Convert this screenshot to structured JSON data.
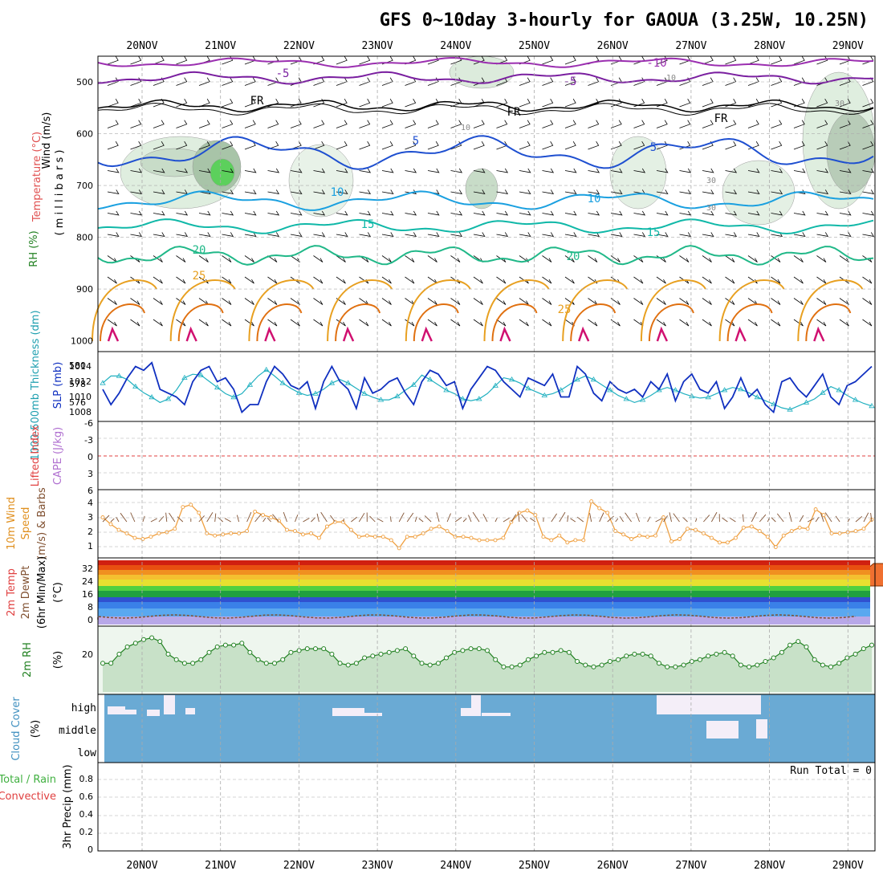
{
  "title": "GFS 0~10day 3-hourly for GAOUA (3.25W, 10.25N)",
  "days": [
    "20NOV",
    "21NOV",
    "22NOV",
    "23NOV",
    "24NOV",
    "25NOV",
    "26NOV",
    "27NOV",
    "28NOV",
    "29NOV"
  ],
  "panels": {
    "upper": {
      "labels": {
        "rh": "RH (%)",
        "temperature": "Temperature (°C)",
        "wind": "Wind (m/s)",
        "millibars": "( m i l l i b a r s )"
      },
      "pressure_ticks": [
        "500",
        "600",
        "700",
        "800",
        "900",
        "1000"
      ],
      "contour_labels": [
        "-10",
        "-5",
        "-5",
        "FR",
        "FR",
        "FR",
        "5",
        "5",
        "10",
        "10",
        "15",
        "15",
        "20",
        "20",
        "25",
        "25",
        "10",
        "30",
        "30",
        "30",
        "10"
      ],
      "colors": {
        "t_m10": "#9b2fb0",
        "t_m5": "#7a1fa0",
        "t_fr": "#000000",
        "t_5": "#1e4fd0",
        "t_10": "#1aa0e0",
        "t_15": "#10b8a8",
        "t_20": "#20b888",
        "t_25": "#e8a020",
        "t_30": "#e07010",
        "t_35": "#d01070",
        "rh": "#8ab88a"
      }
    },
    "thickness": {
      "labels": {
        "thickness": "1000-500mb Thickness (dm)",
        "slp": "SLP (mb)"
      },
      "thickness_ticks": [
        "580",
        "578",
        "576"
      ],
      "slp_ticks": [
        "1014",
        "1012",
        "1010",
        "1008"
      ],
      "colors": {
        "thickness": "#20b0c0",
        "slp": "#1030c0"
      }
    },
    "instability": {
      "labels": {
        "lifted": "Lifted Index",
        "cape": "CAPE (J/kg)"
      },
      "li_ticks": [
        "-6",
        "-3",
        "0",
        "3",
        "6"
      ],
      "colors": {
        "lifted": "#e04040",
        "cape": "#b070d0"
      }
    },
    "wind10m": {
      "labels": {
        "title": "10m Wind",
        "speed": "Speed",
        "barbs": "(m/s) & Barbs"
      },
      "ticks": [
        "4",
        "3",
        "2",
        "1"
      ],
      "colors": {
        "speed": "#f0a040",
        "barbs": "#805030"
      }
    },
    "temp2m": {
      "labels": {
        "temp": "2m Temp",
        "dewpt": "2m DewPt",
        "minmax": "(6hr Min/Max)",
        "unit": "(°C)"
      },
      "ticks": [
        "32",
        "24",
        "16",
        "8",
        "0"
      ]
    },
    "rh2m": {
      "labels": {
        "title": "2m RH",
        "unit": "(%)"
      },
      "ticks": [
        "20"
      ],
      "colors": {
        "line": "#208020",
        "fill": "#b8d8b8"
      }
    },
    "cloud": {
      "labels": {
        "title": "Cloud Cover",
        "unit": "(%)"
      },
      "levels": [
        "high",
        "middle",
        "low"
      ],
      "colors": {
        "bg": "#6aaad4",
        "cloud": "#f4eef8"
      }
    },
    "precip": {
      "labels": {
        "total": "Total / Rain",
        "convective": "Convective",
        "axis": "3hr Precip (mm)",
        "run_total": "Run Total = 0"
      },
      "ticks": [
        "0.8",
        "0.6",
        "0.4",
        "0.2",
        "0"
      ],
      "colors": {
        "total": "#40b040",
        "convective": "#e04040"
      }
    }
  },
  "chart_data": [
    {
      "type": "line",
      "title": "1000-500mb Thickness (dm) / SLP (mb)",
      "x_start": "19NOV 12Z",
      "x_step_hours": 3,
      "series": [
        {
          "name": "1000-500mb Thickness (dm)",
          "axis": "left",
          "values": [
            578.8,
            579.6,
            579.6,
            579.2,
            578.4,
            577.7,
            577.2,
            576.6,
            577.0,
            578.0,
            579.4,
            579.8,
            579.7,
            579.0,
            578.3,
            577.6,
            577.2,
            577.6,
            578.6,
            579.6,
            580.3,
            579.6,
            578.8,
            578.2,
            577.7,
            577.4,
            577.6,
            578.1,
            578.8,
            579.2,
            578.8,
            578.2,
            577.6,
            577.2,
            576.9,
            576.9,
            577.3,
            578.0,
            578.6,
            579.7,
            579.2,
            578.6,
            578.0,
            577.6,
            577.0,
            576.8,
            577.0,
            577.6,
            578.5,
            579.4,
            579.2,
            578.8,
            578.2,
            577.8,
            577.4,
            577.6,
            578.0,
            578.6,
            579.2,
            579.6,
            579.2,
            578.6,
            578.0,
            577.4,
            577.0,
            576.6,
            576.9,
            577.4,
            578.0,
            578.3,
            578.0,
            577.6,
            577.3,
            577.1,
            577.2,
            577.6,
            578.0,
            578.3,
            578.1,
            577.7,
            577.2,
            576.8,
            576.4,
            576.0,
            575.8,
            576.2,
            576.6,
            577.0,
            577.7,
            578.4,
            578.0,
            577.4,
            576.9,
            576.5,
            576.2
          ]
        },
        {
          "name": "SLP (mb)",
          "axis": "right",
          "values": [
            1011,
            1009,
            1010.5,
            1012.5,
            1014,
            1013.5,
            1014.5,
            1011,
            1010.5,
            1010,
            1009,
            1012,
            1013.5,
            1014,
            1012,
            1012.5,
            1011,
            1008,
            1009,
            1009,
            1012,
            1014,
            1013,
            1011.5,
            1011,
            1012,
            1008.5,
            1012,
            1014,
            1012,
            1011,
            1008.5,
            1012.5,
            1010.5,
            1011,
            1012,
            1012.5,
            1010.5,
            1009,
            1012,
            1013.5,
            1013,
            1011.5,
            1012,
            1008.5,
            1011,
            1012.5,
            1014,
            1013.5,
            1012,
            1011,
            1010,
            1012.5,
            1012,
            1011.5,
            1013,
            1010,
            1010,
            1014,
            1013,
            1010.5,
            1009.5,
            1012,
            1011,
            1010.5,
            1011,
            1010,
            1012,
            1011,
            1013,
            1009.5,
            1012,
            1013,
            1011,
            1010.5,
            1012,
            1008.5,
            1010,
            1012.5,
            1010,
            1011,
            1009,
            1008,
            1012,
            1012.5,
            1011,
            1010,
            1011.5,
            1013,
            1010,
            1009,
            1011.5,
            1012,
            1013,
            1014
          ]
        }
      ],
      "ylim_left": [
        575,
        581
      ],
      "ylim_right": [
        1007,
        1015
      ]
    },
    {
      "type": "line",
      "title": "10m Wind Speed (m/s)",
      "x_start": "19NOV 12Z",
      "x_step_hours": 3,
      "values": [
        3.2,
        2.6,
        2.1,
        1.8,
        1.4,
        1.3,
        1.5,
        1.8,
        1.9,
        2.2,
        4.1,
        4.3,
        3.6,
        1.8,
        1.6,
        1.7,
        1.8,
        1.8,
        2.0,
        3.7,
        3.4,
        3.2,
        2.9,
        2.1,
        2.0,
        1.7,
        1.8,
        1.4,
        2.4,
        2.8,
        2.8,
        2.1,
        1.5,
        1.6,
        1.5,
        1.5,
        1.2,
        0.5,
        1.5,
        1.5,
        1.8,
        2.2,
        2.4,
        2.0,
        1.5,
        1.5,
        1.4,
        1.2,
        1.2,
        1.2,
        1.4,
        2.8,
        3.6,
        3.8,
        3.4,
        1.5,
        1.2,
        1.6,
        1.0,
        1.2,
        1.2,
        4.6,
        4.0,
        3.6,
        2.0,
        1.7,
        1.3,
        1.6,
        1.5,
        1.6,
        3.2,
        1.1,
        1.3,
        2.2,
        2.1,
        1.8,
        1.4,
        1.0,
        1.0,
        1.4,
        2.3,
        2.4,
        2.0,
        1.5,
        0.6,
        1.6,
        2.0,
        2.3,
        2.2,
        3.9,
        3.4,
        1.8,
        1.8,
        1.9,
        2.0,
        2.2,
        3.0
      ],
      "ylim": [
        0,
        5
      ]
    },
    {
      "type": "line",
      "title": "2m RH (%)",
      "x_start": "19NOV 12Z",
      "x_step_hours": 3,
      "values": [
        14,
        14,
        19,
        23,
        25,
        27,
        28,
        26,
        19,
        16,
        14,
        14,
        16,
        20,
        23,
        24,
        24,
        25,
        20,
        16,
        14,
        14,
        16,
        20,
        21,
        22,
        22,
        22,
        19,
        14,
        13,
        14,
        17,
        18,
        19,
        20,
        21,
        22,
        18,
        14,
        13,
        14,
        17,
        20,
        21,
        22,
        22,
        21,
        16,
        12,
        12,
        13,
        16,
        18,
        20,
        20,
        21,
        20,
        15,
        13,
        12,
        13,
        15,
        16,
        18,
        19,
        19,
        18,
        14,
        12,
        12,
        13,
        15,
        16,
        18,
        19,
        20,
        18,
        13,
        12,
        13,
        15,
        17,
        20,
        24,
        26,
        23,
        16,
        13,
        12,
        14,
        17,
        19,
        22,
        24
      ],
      "ylim": [
        0,
        35
      ]
    },
    {
      "type": "bar",
      "title": "3hr Precip (mm)",
      "values": [],
      "ylim": [
        0,
        0.9
      ]
    }
  ]
}
